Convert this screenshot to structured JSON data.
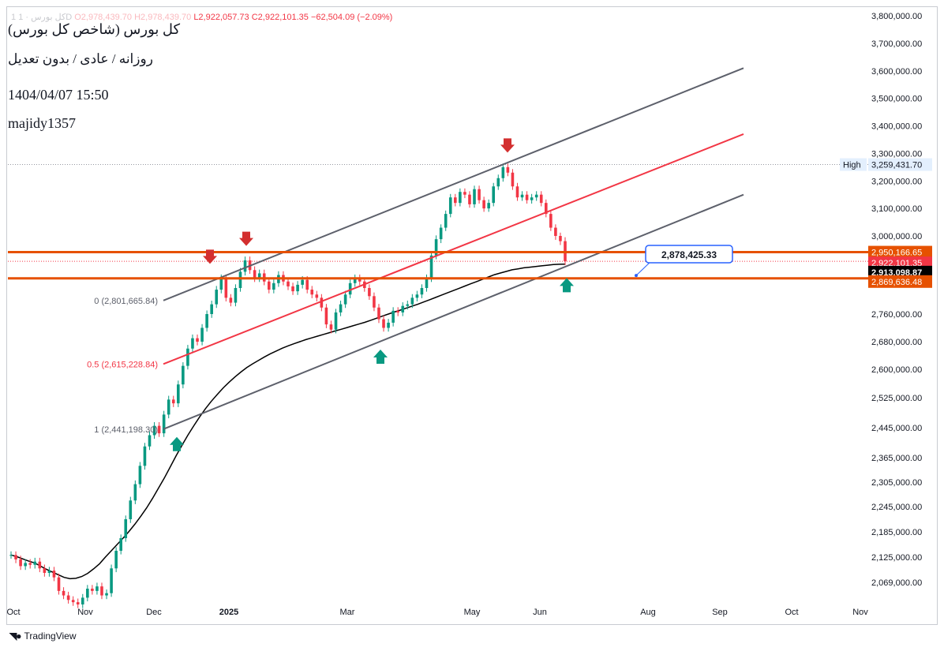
{
  "legend": {
    "symbol": "1 كل بورس · 1D",
    "open": "O2,978,439.70",
    "high": "H2,978,439.70",
    "low": "L2,922,057.73",
    "close": "C2,922,101.35",
    "change": "−62,504.09 (−2.09%)"
  },
  "notes": {
    "line1": "كل بورس (شاخص كل بورس)",
    "line2": "روزانه / عادی / بدون تعدیل",
    "line3": "1404/04/07 15:50",
    "line4": "majidy1357"
  },
  "footer": {
    "brand": "TradingView",
    "logo_icon": "tradingview-logo-icon"
  },
  "colors": {
    "bull": "#089981",
    "bear": "#f23645",
    "channel": "#5d606b",
    "midline": "#f23645",
    "level": "#e65100",
    "ma": "#000000",
    "arrow_down": "#d32f2f",
    "arrow_up": "#089981",
    "callout": "#2962ff"
  },
  "chart_data": {
    "type": "candlestick",
    "title": "",
    "xlabel": "",
    "ylabel": "",
    "scale": "log",
    "ylim": [
      2030000,
      3850000
    ],
    "x_ticks": [
      "Oct",
      "Nov",
      "Dec",
      "2025",
      "Mar",
      "May",
      "Jun",
      "Aug",
      "Sep",
      "Oct",
      "Nov"
    ],
    "y_ticks": [
      3800000,
      3700000,
      3600000,
      3500000,
      3400000,
      3300000,
      3200000,
      3100000,
      3000000,
      2760000,
      2680000,
      2600000,
      2525000,
      2445000,
      2365000,
      2305000,
      2245000,
      2185000,
      2125000,
      2069000
    ],
    "y_tick_labels": [
      "3,800,000.00",
      "3,700,000.00",
      "3,600,000.00",
      "3,500,000.00",
      "3,400,000.00",
      "3,300,000.00",
      "3,200,000.00",
      "3,100,000.00",
      "3,000,000.00",
      "2,760,000.00",
      "2,680,000.00",
      "2,600,000.00",
      "2,525,000.00",
      "2,445,000.00",
      "2,365,000.00",
      "2,305,000.00",
      "2,245,000.00",
      "2,185,000.00",
      "2,125,000.00",
      "2,069,000.00"
    ],
    "closes": [
      2130000,
      2120000,
      2105000,
      2112000,
      2108000,
      2115000,
      2100000,
      2090000,
      2095000,
      2080000,
      2050000,
      2040000,
      2030000,
      2025000,
      2020000,
      2035000,
      2055000,
      2050000,
      2060000,
      2040000,
      2045000,
      2100000,
      2140000,
      2170000,
      2215000,
      2260000,
      2300000,
      2345000,
      2395000,
      2425000,
      2450000,
      2430000,
      2480000,
      2520000,
      2510000,
      2560000,
      2610000,
      2660000,
      2690000,
      2680000,
      2720000,
      2760000,
      2790000,
      2835000,
      2870000,
      2810000,
      2795000,
      2840000,
      2890000,
      2925000,
      2895000,
      2870000,
      2885000,
      2860000,
      2835000,
      2855000,
      2880000,
      2860000,
      2845000,
      2830000,
      2850000,
      2865000,
      2835000,
      2820000,
      2810000,
      2780000,
      2730000,
      2715000,
      2765000,
      2790000,
      2820000,
      2855000,
      2870000,
      2860000,
      2840000,
      2815000,
      2780000,
      2745000,
      2720000,
      2735000,
      2770000,
      2765000,
      2785000,
      2790000,
      2810000,
      2820000,
      2840000,
      2870000,
      2940000,
      2990000,
      3030000,
      3080000,
      3140000,
      3120000,
      3160000,
      3150000,
      3115000,
      3170000,
      3130000,
      3100000,
      3120000,
      3180000,
      3210000,
      3250000,
      3230000,
      3180000,
      3140000,
      3150000,
      3130000,
      3140000,
      3150000,
      3120000,
      3080000,
      3030000,
      3000000,
      2984000,
      2922101
    ],
    "series": [
      {
        "name": "",
        "type": "moving-average",
        "values": [
          2130000,
          2126000,
          2121000,
          2116000,
          2112000,
          2105000,
          2098000,
          2092000,
          2086000,
          2080000,
          2077000,
          2078000,
          2082000,
          2089000,
          2099000,
          2110000,
          2125000,
          2140000,
          2155000,
          2170000,
          2186000,
          2203000,
          2222000,
          2242000,
          2265000,
          2290000,
          2315000,
          2342000,
          2370000,
          2398000,
          2425000,
          2450000,
          2474000,
          2496000,
          2516000,
          2534000,
          2551000,
          2566000,
          2580000,
          2593000,
          2605000,
          2616000,
          2626000,
          2636000,
          2645000,
          2653000,
          2661000,
          2668000,
          2674000,
          2680000,
          2686000,
          2691000,
          2696000,
          2701000,
          2706000,
          2711000,
          2716000,
          2721000,
          2726000,
          2731000,
          2736000,
          2742000,
          2748000,
          2754000,
          2760000,
          2766000,
          2772000,
          2778000,
          2784000,
          2790000,
          2797000,
          2804000,
          2811000,
          2818000,
          2825000,
          2832000,
          2839000,
          2846000,
          2853000,
          2860000,
          2867000,
          2874000,
          2881000,
          2886000,
          2891000,
          2896000,
          2899000,
          2902000,
          2904000,
          2906000,
          2908000,
          2910000,
          2912000,
          2913000,
          2913099
        ]
      }
    ],
    "channel": {
      "lower": [
        2441198.3,
        3150000
      ],
      "middle": [
        2615228.84,
        3370000
      ],
      "upper": [
        2801665.84,
        3610000
      ]
    },
    "horizontal_levels": [
      2950166.65,
      2869636.48
    ],
    "high_line": 3259431.7,
    "fib_labels": [
      "0 (2,801,665.84)",
      "0.5 (2,615,228.84)",
      "1 (2,441,198.30)"
    ],
    "price_labels": [
      {
        "value": 3259431.7,
        "text": "3,259,431.70",
        "tag": "High"
      },
      {
        "value": 2950166.65,
        "text": "2,950,166.65"
      },
      {
        "value": 2922101.35,
        "text": "2,922,101.35"
      },
      {
        "value": 2913098.87,
        "text": "2,913,098.87"
      },
      {
        "value": 2869636.48,
        "text": "2,869,636.48"
      }
    ],
    "callout": {
      "value": 2878425.33,
      "text": "2,878,425.33"
    },
    "down_arrows": [
      2895000,
      2950000,
      3280000
    ],
    "up_arrows": [
      2441198,
      2680000,
      2895000
    ]
  }
}
